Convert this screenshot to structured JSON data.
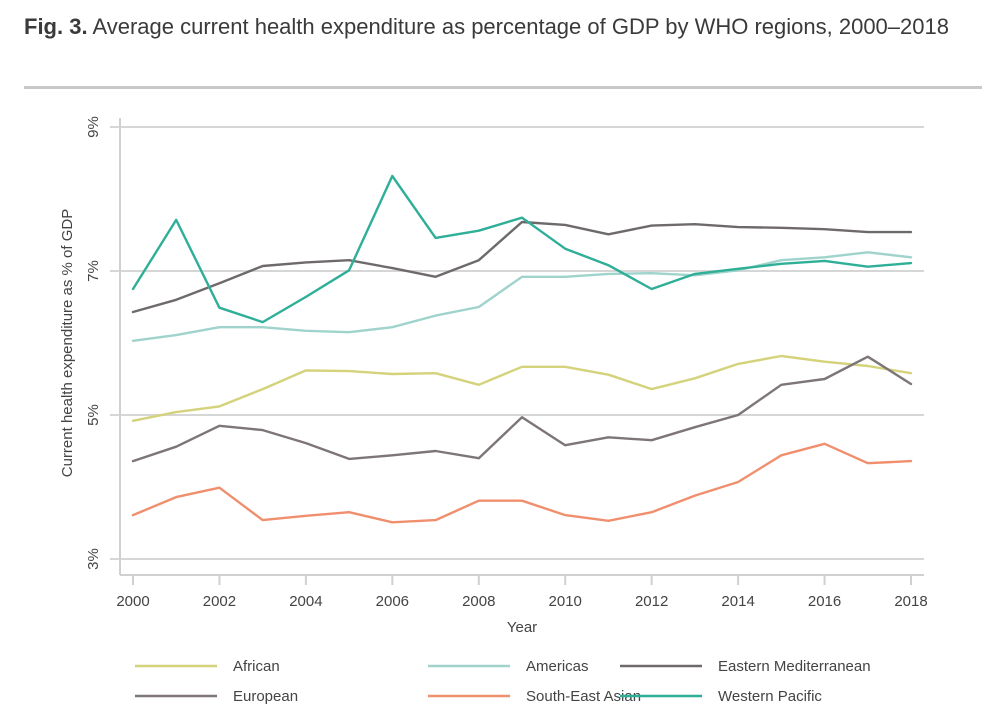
{
  "figure": {
    "number": "Fig. 3.",
    "caption": "Average current health expenditure as percentage of GDP by WHO regions, 2000–2018"
  },
  "chart_data": {
    "type": "line",
    "title": "Average current health expenditure as percentage of GDP by WHO regions, 2000–2018",
    "xlabel": "Year",
    "ylabel": "Current health expenditure as % of GDP",
    "x": [
      2000,
      2001,
      2002,
      2003,
      2004,
      2005,
      2006,
      2007,
      2008,
      2009,
      2010,
      2011,
      2012,
      2013,
      2014,
      2015,
      2016,
      2017,
      2018
    ],
    "xticks": [
      "2000",
      "2002",
      "2004",
      "2006",
      "2008",
      "2010",
      "2012",
      "2014",
      "2016",
      "2018"
    ],
    "xtick_values": [
      2000,
      2002,
      2004,
      2006,
      2008,
      2010,
      2012,
      2014,
      2016,
      2018
    ],
    "yticks": [
      "3%",
      "5%",
      "7%",
      "9%"
    ],
    "ytick_values": [
      3,
      5,
      7,
      9
    ],
    "ylim": [
      3,
      9
    ],
    "xlim": [
      2000,
      2018
    ],
    "grid": "horizontal",
    "legend_position": "bottom",
    "series": [
      {
        "name": "African",
        "color": "#d4d27a",
        "values": [
          4.92,
          5.04,
          5.12,
          5.36,
          5.62,
          5.61,
          5.57,
          5.58,
          5.42,
          5.67,
          5.67,
          5.56,
          5.36,
          5.51,
          5.71,
          5.82,
          5.74,
          5.68,
          5.58
        ]
      },
      {
        "name": "Americas",
        "color": "#9fd3cc",
        "values": [
          6.03,
          6.11,
          6.22,
          6.22,
          6.17,
          6.15,
          6.22,
          6.38,
          6.5,
          6.92,
          6.92,
          6.96,
          6.97,
          6.94,
          7.01,
          7.15,
          7.19,
          7.26,
          7.19
        ]
      },
      {
        "name": "Eastern Mediterranean",
        "color": "#6e6a6a",
        "values": [
          6.43,
          6.6,
          6.83,
          7.07,
          7.12,
          7.15,
          7.04,
          6.92,
          7.15,
          7.68,
          7.64,
          7.51,
          7.63,
          7.65,
          7.61,
          7.6,
          7.58,
          7.54,
          7.54
        ]
      },
      {
        "name": "European",
        "color": "#7d7578",
        "values": [
          4.36,
          4.56,
          4.85,
          4.79,
          4.61,
          4.39,
          4.44,
          4.5,
          4.4,
          4.97,
          4.58,
          4.69,
          4.65,
          4.83,
          5.0,
          5.42,
          5.5,
          5.81,
          5.43
        ]
      },
      {
        "name": "South-East Asian",
        "color": "#f08f6e",
        "values": [
          3.61,
          3.86,
          3.99,
          3.54,
          3.6,
          3.65,
          3.51,
          3.54,
          3.81,
          3.81,
          3.61,
          3.53,
          3.65,
          3.88,
          4.07,
          4.44,
          4.6,
          4.33,
          4.36
        ]
      },
      {
        "name": "Western Pacific",
        "color": "#2fae98",
        "values": [
          6.75,
          7.71,
          6.49,
          6.29,
          6.64,
          7.01,
          8.32,
          7.46,
          7.56,
          7.74,
          7.31,
          7.08,
          6.75,
          6.96,
          7.03,
          7.1,
          7.14,
          7.06,
          7.11
        ]
      }
    ]
  },
  "legend": {
    "items": [
      {
        "label": "African"
      },
      {
        "label": "Americas"
      },
      {
        "label": "Eastern Mediterranean"
      },
      {
        "label": "European"
      },
      {
        "label": "South-East Asian"
      },
      {
        "label": "Western Pacific"
      }
    ]
  }
}
